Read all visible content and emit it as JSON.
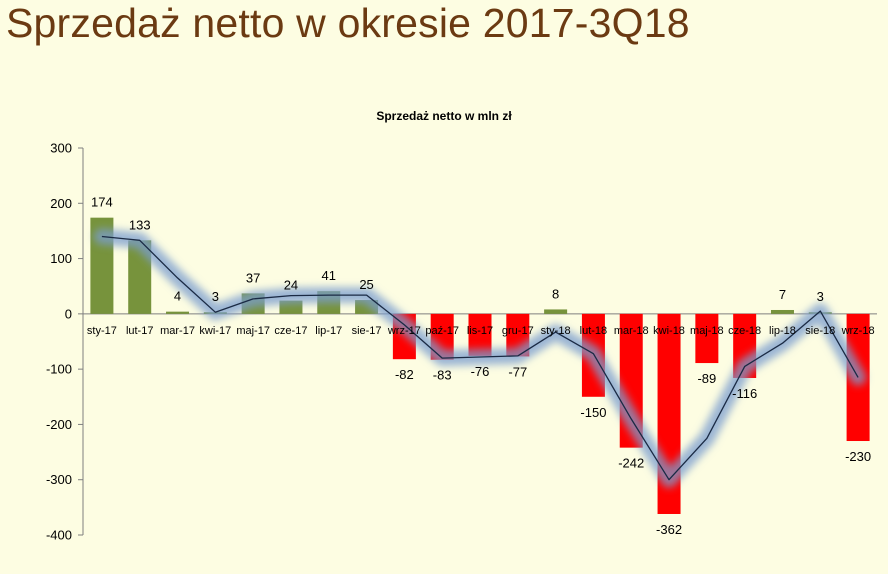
{
  "page": {
    "title": "Sprzedaż netto w okresie 2017-3Q18"
  },
  "colors": {
    "background": "#fdfde2",
    "title": "#6b3a12",
    "positive_bar": "#77933c",
    "negative_bar": "#ff0000",
    "line": "#1a2a44",
    "glow": "#7a9ccf"
  },
  "chart_data": {
    "type": "bar",
    "title": "Sprzedaż netto w mln zł",
    "xlabel": "",
    "ylabel": "",
    "ylim": [
      -400,
      300
    ],
    "yticks": [
      300,
      200,
      100,
      0,
      -100,
      -200,
      -300,
      -400
    ],
    "grid": false,
    "legend": "none",
    "categories": [
      "sty-17",
      "lut-17",
      "mar-17",
      "kwi-17",
      "maj-17",
      "cze-17",
      "lip-17",
      "sie-17",
      "wrz-17",
      "paź-17",
      "lis-17",
      "gru-17",
      "sty-18",
      "lut-18",
      "mar-18",
      "kwi-18",
      "maj-18",
      "cze-18",
      "lip-18",
      "sie-18",
      "wrz-18"
    ],
    "series": [
      {
        "type": "bar",
        "values": [
          174,
          133,
          4,
          3,
          37,
          24,
          41,
          25,
          -82,
          -83,
          -76,
          -77,
          8,
          -150,
          -242,
          -362,
          -89,
          -116,
          7,
          3,
          -230
        ]
      },
      {
        "type": "line",
        "values": [
          140,
          133,
          65,
          3,
          27,
          33,
          34,
          34,
          -20,
          -80,
          -78,
          -76,
          -33,
          -72,
          -190,
          -300,
          -225,
          -95,
          -53,
          5,
          -115
        ]
      }
    ]
  }
}
